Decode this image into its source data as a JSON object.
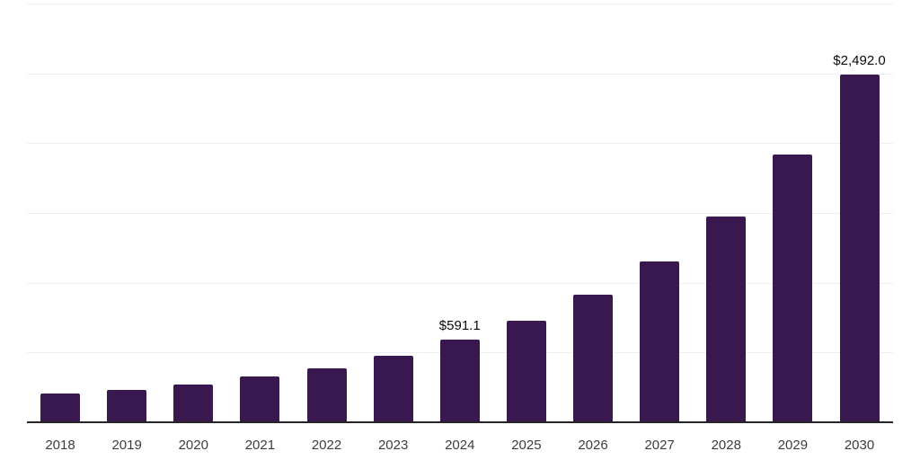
{
  "chart": {
    "bar_color": "#38184F",
    "gridline_color": "#efefef",
    "axis_color": "#262626",
    "value_label_color": "#0a0a0a",
    "tick_label_color": "#3d3d3d",
    "background_color": "#ffffff"
  },
  "chart_data": {
    "type": "bar",
    "categories": [
      "2018",
      "2019",
      "2020",
      "2021",
      "2022",
      "2023",
      "2024",
      "2025",
      "2026",
      "2027",
      "2028",
      "2029",
      "2030"
    ],
    "values": [
      207,
      231,
      270,
      329,
      389,
      478,
      591.1,
      730,
      912,
      1155,
      1477,
      1920,
      2492.0
    ],
    "data_labels": [
      "",
      "",
      "",
      "",
      "",
      "",
      "$591.1",
      "",
      "",
      "",
      "",
      "",
      "$2,492.0"
    ],
    "ylim": [
      0,
      3000
    ],
    "grid_step": 500,
    "grid": "horizontal",
    "legend": "none",
    "y_axis_labels_visible": false,
    "x_axis_line_visible": true
  }
}
